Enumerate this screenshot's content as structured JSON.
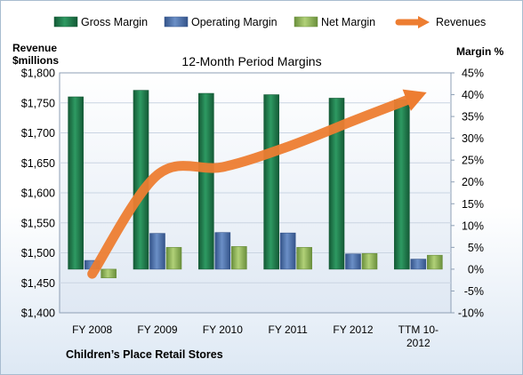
{
  "chart_data": {
    "type": "bar",
    "title": "12-Month Period Margins",
    "company_label": "Children’s Place Retail Stores",
    "categories": [
      [
        "FY 2008"
      ],
      [
        "FY 2009"
      ],
      [
        "FY 2010"
      ],
      [
        "FY 2011"
      ],
      [
        "FY 2012"
      ],
      [
        "TTM 10-",
        "2012"
      ]
    ],
    "left_axis": {
      "label_lines": [
        "Revenue",
        "$millions"
      ],
      "range": [
        1400,
        1800
      ],
      "ticks": [
        "$1,400",
        "$1,450",
        "$1,500",
        "$1,550",
        "$1,600",
        "$1,650",
        "$1,700",
        "$1,750",
        "$1,800"
      ]
    },
    "right_axis": {
      "label": "Margin  %",
      "range": [
        -10,
        45
      ],
      "ticks": [
        "-10%",
        "-5%",
        "0%",
        "5%",
        "10%",
        "15%",
        "20%",
        "25%",
        "30%",
        "35%",
        "40%",
        "45%"
      ]
    },
    "series": [
      {
        "name": "Gross Margin",
        "axis": "right",
        "kind": "bar",
        "color": "#1f7a4c",
        "values": [
          39.5,
          41.0,
          40.3,
          40.0,
          39.2,
          38.8
        ]
      },
      {
        "name": "Operating Margin",
        "axis": "right",
        "kind": "bar",
        "color": "#4a6fa5",
        "values": [
          2.0,
          8.2,
          8.4,
          8.3,
          3.5,
          2.3
        ]
      },
      {
        "name": "Net Margin",
        "axis": "right",
        "kind": "bar",
        "color": "#8db25a",
        "values": [
          -2.0,
          5.0,
          5.2,
          5.0,
          3.6,
          3.2
        ]
      },
      {
        "name": "Revenues",
        "axis": "left",
        "kind": "line",
        "color": "#ed7d31",
        "values": [
          1465,
          1630,
          1643,
          1677,
          1720,
          1762
        ]
      }
    ],
    "legend_position": "top",
    "grid": true
  }
}
